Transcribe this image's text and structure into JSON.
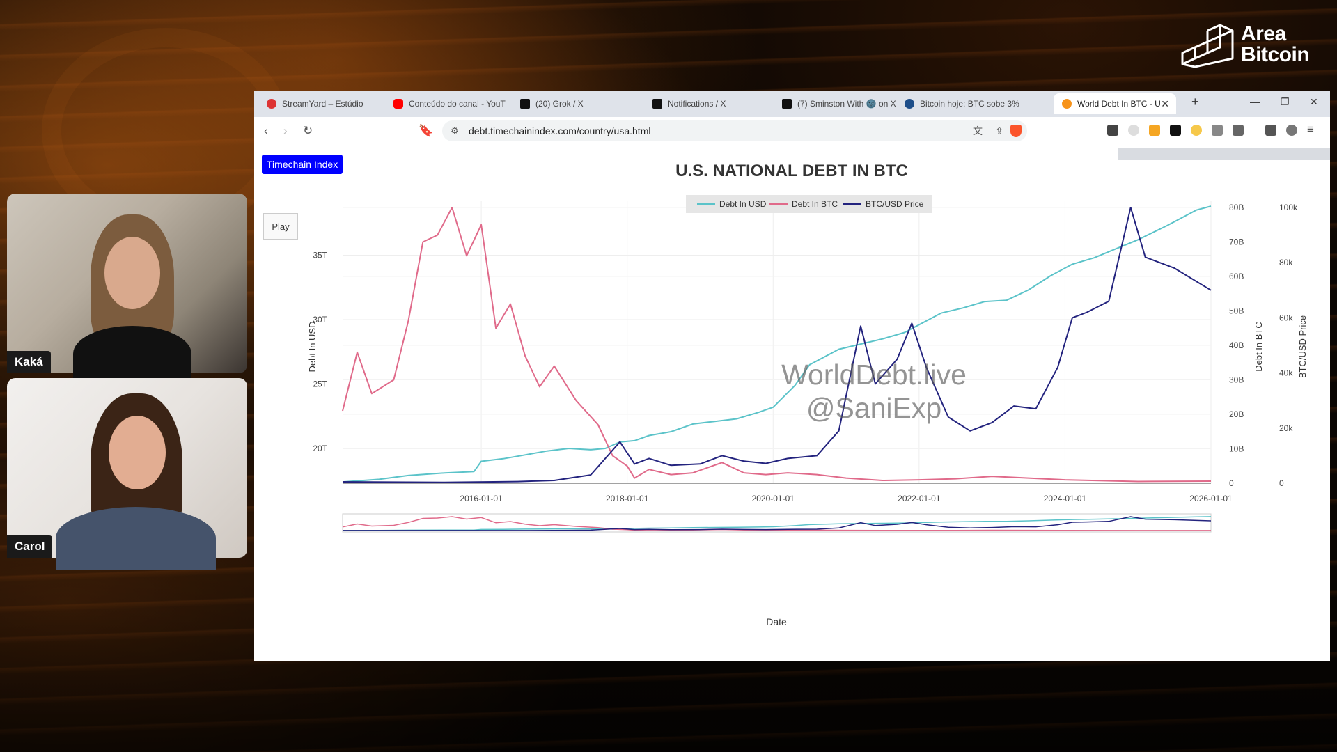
{
  "overlay": {
    "logo": {
      "line1": "Area",
      "line2": "Bitcoin"
    },
    "participants": [
      {
        "name": "Kaká"
      },
      {
        "name": "Carol"
      }
    ]
  },
  "browser": {
    "tabs": [
      {
        "label": "StreamYard – Estúdio",
        "active": false
      },
      {
        "label": "Conteúdo do canal - YouT",
        "active": false
      },
      {
        "label": "(20) Grok / X",
        "active": false
      },
      {
        "label": "Notifications / X",
        "active": false
      },
      {
        "label": "(7) Sminston With 🌚 on X",
        "active": false
      },
      {
        "label": "Bitcoin hoje: BTC sobe 3%",
        "active": false
      },
      {
        "label": "World Debt In BTC - U",
        "active": true
      }
    ],
    "url": "debt.timechainindex.com/country/usa.html"
  },
  "page": {
    "brand_button": "Timechain Index",
    "play_button": "Play",
    "watermark": {
      "line1": "WorldDebt.live",
      "line2": "@SaniExp"
    }
  },
  "chart_data": {
    "type": "line",
    "title": "U.S. NATIONAL DEBT IN BTC",
    "xlabel": "Date",
    "ylabel_left": "Debt In USD",
    "ylabel_right1": "Debt In BTC",
    "ylabel_right2": "BTC/USD Price",
    "legend_position": "top-center",
    "x_ticks": [
      "2016-01-01",
      "2018-01-01",
      "2020-01-01",
      "2022-01-01",
      "2024-01-01",
      "2026-01-01"
    ],
    "y_left_ticks": [
      "20T",
      "25T",
      "30T",
      "35T"
    ],
    "y_right1_ticks": [
      "0",
      "10B",
      "20B",
      "30B",
      "40B",
      "50B",
      "60B",
      "70B",
      "80B"
    ],
    "y_right2_ticks": [
      "0",
      "20k",
      "40k",
      "60k",
      "80k",
      "100k"
    ],
    "x_range": [
      2014.1,
      2026.0
    ],
    "y_left_range": [
      17.3,
      38.7
    ],
    "y_right1_range": [
      0,
      80
    ],
    "y_right2_range": [
      0,
      100
    ],
    "series": [
      {
        "name": "Debt In USD",
        "color": "#5bc3c9",
        "axis": "left",
        "points": [
          [
            2014.1,
            17.4
          ],
          [
            2014.6,
            17.6
          ],
          [
            2015.0,
            17.9
          ],
          [
            2015.5,
            18.1
          ],
          [
            2015.9,
            18.2
          ],
          [
            2016.0,
            19.0
          ],
          [
            2016.3,
            19.2
          ],
          [
            2016.6,
            19.5
          ],
          [
            2016.9,
            19.8
          ],
          [
            2017.2,
            20.0
          ],
          [
            2017.5,
            19.9
          ],
          [
            2017.7,
            20.0
          ],
          [
            2017.9,
            20.5
          ],
          [
            2018.1,
            20.6
          ],
          [
            2018.3,
            21.0
          ],
          [
            2018.6,
            21.3
          ],
          [
            2018.9,
            21.9
          ],
          [
            2019.2,
            22.1
          ],
          [
            2019.5,
            22.3
          ],
          [
            2019.8,
            22.8
          ],
          [
            2020.0,
            23.2
          ],
          [
            2020.3,
            24.9
          ],
          [
            2020.5,
            26.5
          ],
          [
            2020.9,
            27.7
          ],
          [
            2021.2,
            28.1
          ],
          [
            2021.5,
            28.5
          ],
          [
            2021.8,
            29.0
          ],
          [
            2022.0,
            29.6
          ],
          [
            2022.3,
            30.5
          ],
          [
            2022.6,
            30.9
          ],
          [
            2022.9,
            31.4
          ],
          [
            2023.2,
            31.5
          ],
          [
            2023.5,
            32.3
          ],
          [
            2023.8,
            33.4
          ],
          [
            2024.1,
            34.3
          ],
          [
            2024.4,
            34.8
          ],
          [
            2024.7,
            35.5
          ],
          [
            2025.0,
            36.2
          ],
          [
            2025.4,
            37.3
          ],
          [
            2025.8,
            38.5
          ],
          [
            2026.0,
            38.8
          ]
        ]
      },
      {
        "name": "Debt In BTC",
        "color": "#e06a8a",
        "axis": "right1",
        "points": [
          [
            2014.1,
            21
          ],
          [
            2014.3,
            38
          ],
          [
            2014.5,
            26
          ],
          [
            2014.8,
            30
          ],
          [
            2015.0,
            47
          ],
          [
            2015.2,
            70
          ],
          [
            2015.4,
            72
          ],
          [
            2015.6,
            80
          ],
          [
            2015.8,
            66
          ],
          [
            2016.0,
            75
          ],
          [
            2016.2,
            45
          ],
          [
            2016.4,
            52
          ],
          [
            2016.6,
            37
          ],
          [
            2016.8,
            28
          ],
          [
            2017.0,
            34
          ],
          [
            2017.3,
            24
          ],
          [
            2017.6,
            17
          ],
          [
            2017.8,
            8
          ],
          [
            2018.0,
            5
          ],
          [
            2018.1,
            1.5
          ],
          [
            2018.3,
            4
          ],
          [
            2018.6,
            2.5
          ],
          [
            2018.9,
            3
          ],
          [
            2019.1,
            4.5
          ],
          [
            2019.3,
            6
          ],
          [
            2019.6,
            3
          ],
          [
            2019.9,
            2.5
          ],
          [
            2020.2,
            3
          ],
          [
            2020.6,
            2.5
          ],
          [
            2021.0,
            1.5
          ],
          [
            2021.5,
            0.8
          ],
          [
            2022.0,
            1.0
          ],
          [
            2022.5,
            1.3
          ],
          [
            2023.0,
            2.0
          ],
          [
            2023.5,
            1.5
          ],
          [
            2024.0,
            1.0
          ],
          [
            2025.0,
            0.5
          ],
          [
            2026.0,
            0.6
          ]
        ]
      },
      {
        "name": "BTC/USD Price",
        "color": "#23237e",
        "axis": "right2",
        "points": [
          [
            2014.1,
            0.5
          ],
          [
            2015.5,
            0.3
          ],
          [
            2016.5,
            0.6
          ],
          [
            2017.0,
            1.0
          ],
          [
            2017.5,
            3
          ],
          [
            2017.9,
            15
          ],
          [
            2018.1,
            7
          ],
          [
            2018.3,
            9
          ],
          [
            2018.6,
            6.5
          ],
          [
            2019.0,
            7
          ],
          [
            2019.3,
            10
          ],
          [
            2019.6,
            8
          ],
          [
            2019.9,
            7.2
          ],
          [
            2020.2,
            9
          ],
          [
            2020.6,
            10
          ],
          [
            2020.9,
            19
          ],
          [
            2021.2,
            57
          ],
          [
            2021.4,
            36
          ],
          [
            2021.7,
            45
          ],
          [
            2021.9,
            58
          ],
          [
            2022.1,
            42
          ],
          [
            2022.4,
            24
          ],
          [
            2022.7,
            19
          ],
          [
            2023.0,
            22
          ],
          [
            2023.3,
            28
          ],
          [
            2023.6,
            27
          ],
          [
            2023.9,
            42
          ],
          [
            2024.1,
            60
          ],
          [
            2024.3,
            62
          ],
          [
            2024.6,
            66
          ],
          [
            2024.9,
            100
          ],
          [
            2025.1,
            82
          ],
          [
            2025.5,
            78
          ],
          [
            2026.0,
            70
          ]
        ]
      }
    ]
  }
}
